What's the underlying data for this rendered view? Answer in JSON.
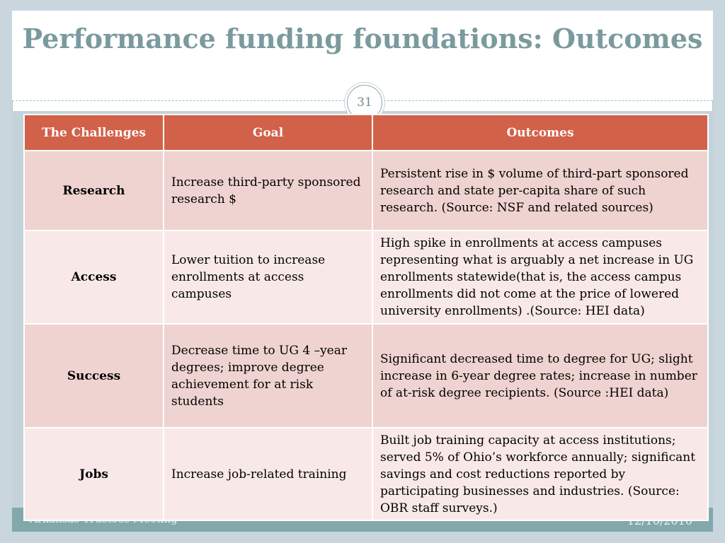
{
  "slide": {
    "title": "Performance funding foundations: Outcomes",
    "number": "31",
    "footer_left": "Arkansas Trustees Meeting",
    "footer_right": "12/10/2010"
  },
  "colors": {
    "title": "#7a9a9e",
    "header_fill": "#d2614a",
    "row_odd": "#efd3d1",
    "row_even": "#f8e9e8",
    "footer_bar": "#82a8ab"
  },
  "table": {
    "headers": [
      "The Challenges",
      "Goal",
      "Outcomes"
    ],
    "rows": [
      {
        "challenge": "Research",
        "goal": "Increase third-party sponsored research $",
        "outcome": "Persistent rise in $ volume of third-part sponsored research and state per-capita share of such research. (Source: NSF and related sources)"
      },
      {
        "challenge": "Access",
        "goal": "Lower tuition to increase enrollments at access campuses",
        "outcome": "High spike in enrollments at access campuses representing what is arguably a net increase in UG enrollments  statewide(that is, the access campus enrollments did not come at the price of lowered university enrollments) .(Source: HEI data)"
      },
      {
        "challenge": "Success",
        "goal": "Decrease time to UG 4 –year degrees; improve degree achievement for at risk students",
        "outcome": "Significant decreased time to degree for UG; slight increase in 6-year degree rates; increase in number of at-risk degree recipients. (Source :HEI data)"
      },
      {
        "challenge": "Jobs",
        "goal": "Increase job-related training",
        "outcome": "Built job training capacity at access institutions; served 5% of Ohio’s workforce annually; significant savings and cost reductions reported by participating businesses and industries. (Source: OBR staff surveys.)"
      }
    ]
  }
}
